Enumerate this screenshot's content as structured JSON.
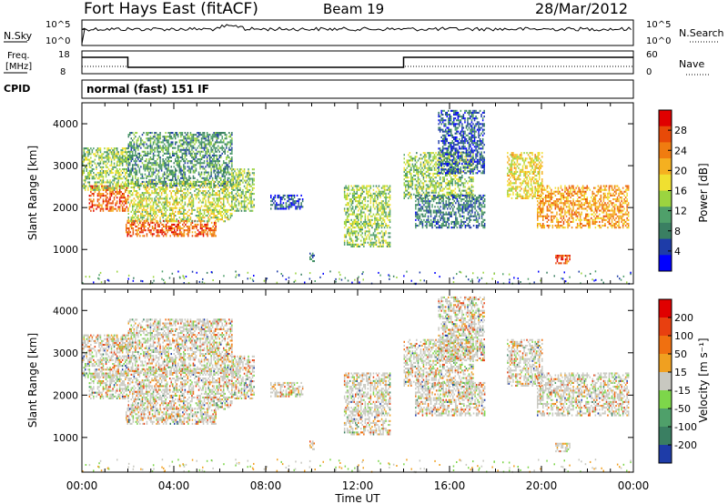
{
  "header": {
    "station": "Fort Hays East (fitACF)",
    "beam": "Beam 19",
    "date": "28/Mar/2012"
  },
  "noise_panel": {
    "left_label": "N.Sky",
    "left_ticks": [
      "10^5",
      "10^0"
    ],
    "right_label": "N.Search",
    "right_ticks": [
      "10^5",
      "10^0"
    ]
  },
  "freq_panel": {
    "left_label_line1": "Freq.",
    "left_label_line2": "[MHz]",
    "left_ticks": [
      "18",
      "8"
    ],
    "right_label": "Nave",
    "right_ticks": [
      "60",
      "0"
    ]
  },
  "cpid": {
    "label": "CPID",
    "program": "normal (fast) 151 IF"
  },
  "chart_data": [
    {
      "type": "heatmap",
      "name": "power",
      "ylabel": "Slant Range [km]",
      "ylim": [
        180,
        4500
      ],
      "y_ticks": [
        "1000",
        "2000",
        "3000",
        "4000"
      ],
      "colorbar_label": "Power [dB]",
      "colorbar_ticks": [
        "4",
        "8",
        "12",
        "16",
        "20",
        "24",
        "28"
      ],
      "colorbar_range": [
        0,
        32
      ],
      "colors": [
        "#0000ff",
        "#1e3ca8",
        "#3a7f62",
        "#4fa06a",
        "#9bd440",
        "#f0e030",
        "#f5b020",
        "#f07c10",
        "#e84a08",
        "#e00000"
      ],
      "echo_regions": [
        {
          "t": [
            0.3,
            2.0
          ],
          "r": [
            1900,
            2500
          ],
          "p": 26
        },
        {
          "t": [
            0.0,
            2.0
          ],
          "r": [
            2400,
            3400
          ],
          "p": 14
        },
        {
          "t": [
            1.9,
            5.8
          ],
          "r": [
            1300,
            1700
          ],
          "p": 26
        },
        {
          "t": [
            2.0,
            6.5
          ],
          "r": [
            1650,
            2600
          ],
          "p": 16
        },
        {
          "t": [
            2.0,
            6.5
          ],
          "r": [
            2500,
            3800
          ],
          "p": 10
        },
        {
          "t": [
            6.5,
            7.5
          ],
          "r": [
            1900,
            2900
          ],
          "p": 14
        },
        {
          "t": [
            8.2,
            9.6
          ],
          "r": [
            1950,
            2300
          ],
          "p": 5
        },
        {
          "t": [
            9.9,
            10.1
          ],
          "r": [
            700,
            900
          ],
          "p": 8
        },
        {
          "t": [
            11.4,
            13.4
          ],
          "r": [
            1050,
            2500
          ],
          "p": 14
        },
        {
          "t": [
            14.0,
            17.0
          ],
          "r": [
            2200,
            3300
          ],
          "p": 14
        },
        {
          "t": [
            14.5,
            17.5
          ],
          "r": [
            1500,
            2300
          ],
          "p": 8
        },
        {
          "t": [
            15.5,
            17.5
          ],
          "r": [
            2800,
            4300
          ],
          "p": 6
        },
        {
          "t": [
            18.5,
            20.0
          ],
          "r": [
            2200,
            3300
          ],
          "p": 18
        },
        {
          "t": [
            19.8,
            23.8
          ],
          "r": [
            1500,
            2500
          ],
          "p": 22
        },
        {
          "t": [
            20.6,
            21.2
          ],
          "r": [
            650,
            850
          ],
          "p": 27
        }
      ]
    },
    {
      "type": "heatmap",
      "name": "velocity",
      "ylabel": "Slant Range [km]",
      "ylim": [
        180,
        4500
      ],
      "y_ticks": [
        "1000",
        "2000",
        "3000",
        "4000"
      ],
      "colorbar_label": "Velocity [m s⁻¹]",
      "colorbar_ticks": [
        "200",
        "100",
        "50",
        "15",
        "-15",
        "-50",
        "-100",
        "-200"
      ],
      "colors": [
        "#1e3ca8",
        "#3a7f62",
        "#4fa06a",
        "#7dd64a",
        "#c8c8c0",
        "#f0a020",
        "#f07010",
        "#e84010",
        "#e00000"
      ],
      "ground_scatter_color": "#c8c8c0",
      "x_ticks": [
        "00:00",
        "04:00",
        "08:00",
        "12:00",
        "16:00",
        "20:00",
        "00:00"
      ],
      "xlabel": "Time UT"
    }
  ]
}
